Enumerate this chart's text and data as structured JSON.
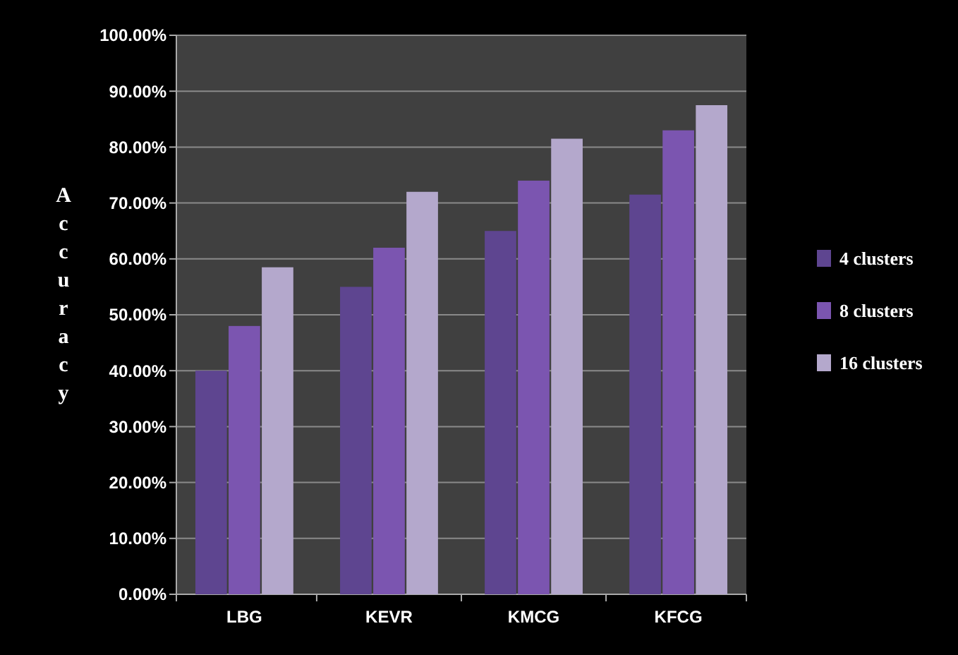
{
  "chart_data": {
    "type": "bar",
    "ylabel": "Accuracy",
    "categories": [
      "LBG",
      "KEVR",
      "KMCG",
      "KFCG"
    ],
    "series": [
      {
        "name": "4 clusters",
        "color": "#5e4590",
        "values": [
          40,
          55,
          65,
          71.5
        ]
      },
      {
        "name": "8 clusters",
        "color": "#7b55b0",
        "values": [
          48,
          62,
          74,
          83
        ]
      },
      {
        "name": "16 clusters",
        "color": "#b4a8cc",
        "values": [
          58.5,
          72,
          81.5,
          87.5
        ]
      }
    ],
    "ylim": [
      0,
      100
    ],
    "yticks": [
      {
        "value": 0,
        "label": "0.00%"
      },
      {
        "value": 10,
        "label": "10.00%"
      },
      {
        "value": 20,
        "label": "20.00%"
      },
      {
        "value": 30,
        "label": "30.00%"
      },
      {
        "value": 40,
        "label": "40.00%"
      },
      {
        "value": 50,
        "label": "50.00%"
      },
      {
        "value": 60,
        "label": "60.00%"
      },
      {
        "value": 70,
        "label": "70.00%"
      },
      {
        "value": 80,
        "label": "80.00%"
      },
      {
        "value": 90,
        "label": "90.00%"
      },
      {
        "value": 100,
        "label": "100.00%"
      }
    ],
    "grid": "y",
    "legend": "right"
  }
}
